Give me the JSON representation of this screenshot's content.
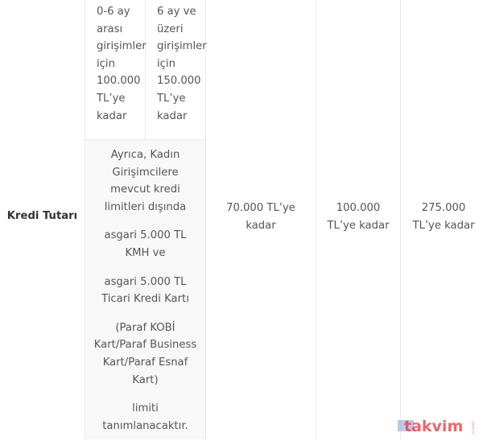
{
  "row_label": "Kredi Tutarı",
  "sub_cells": [
    {
      "text": "0-6 ay arası girişimler için 100.000 TL’ye kadar"
    },
    {
      "text": "6 ay ve üzeri girişimler için 150.000 TL’ye kadar"
    }
  ],
  "lower_cell": {
    "paragraphs": [
      "Ayrıca, Kadın Girişimcilere mevcut kredi limitleri dışında",
      "asgari 5.000 TL KMH ve",
      "asgari 5.000 TL Ticari Kredi Kartı",
      "(Paraf KOBİ Kart/Paraf Business Kart/Paraf Esnaf Kart)",
      "limiti tanımlanacaktır."
    ]
  },
  "values": [
    "70.000 TL’ye kadar",
    "100.000 TL’ye kadar",
    "275.000 TL’ye kadar"
  ],
  "watermark": {
    "text": "takvim",
    "suffix": ".com.tr",
    "color": "#e8323c"
  }
}
